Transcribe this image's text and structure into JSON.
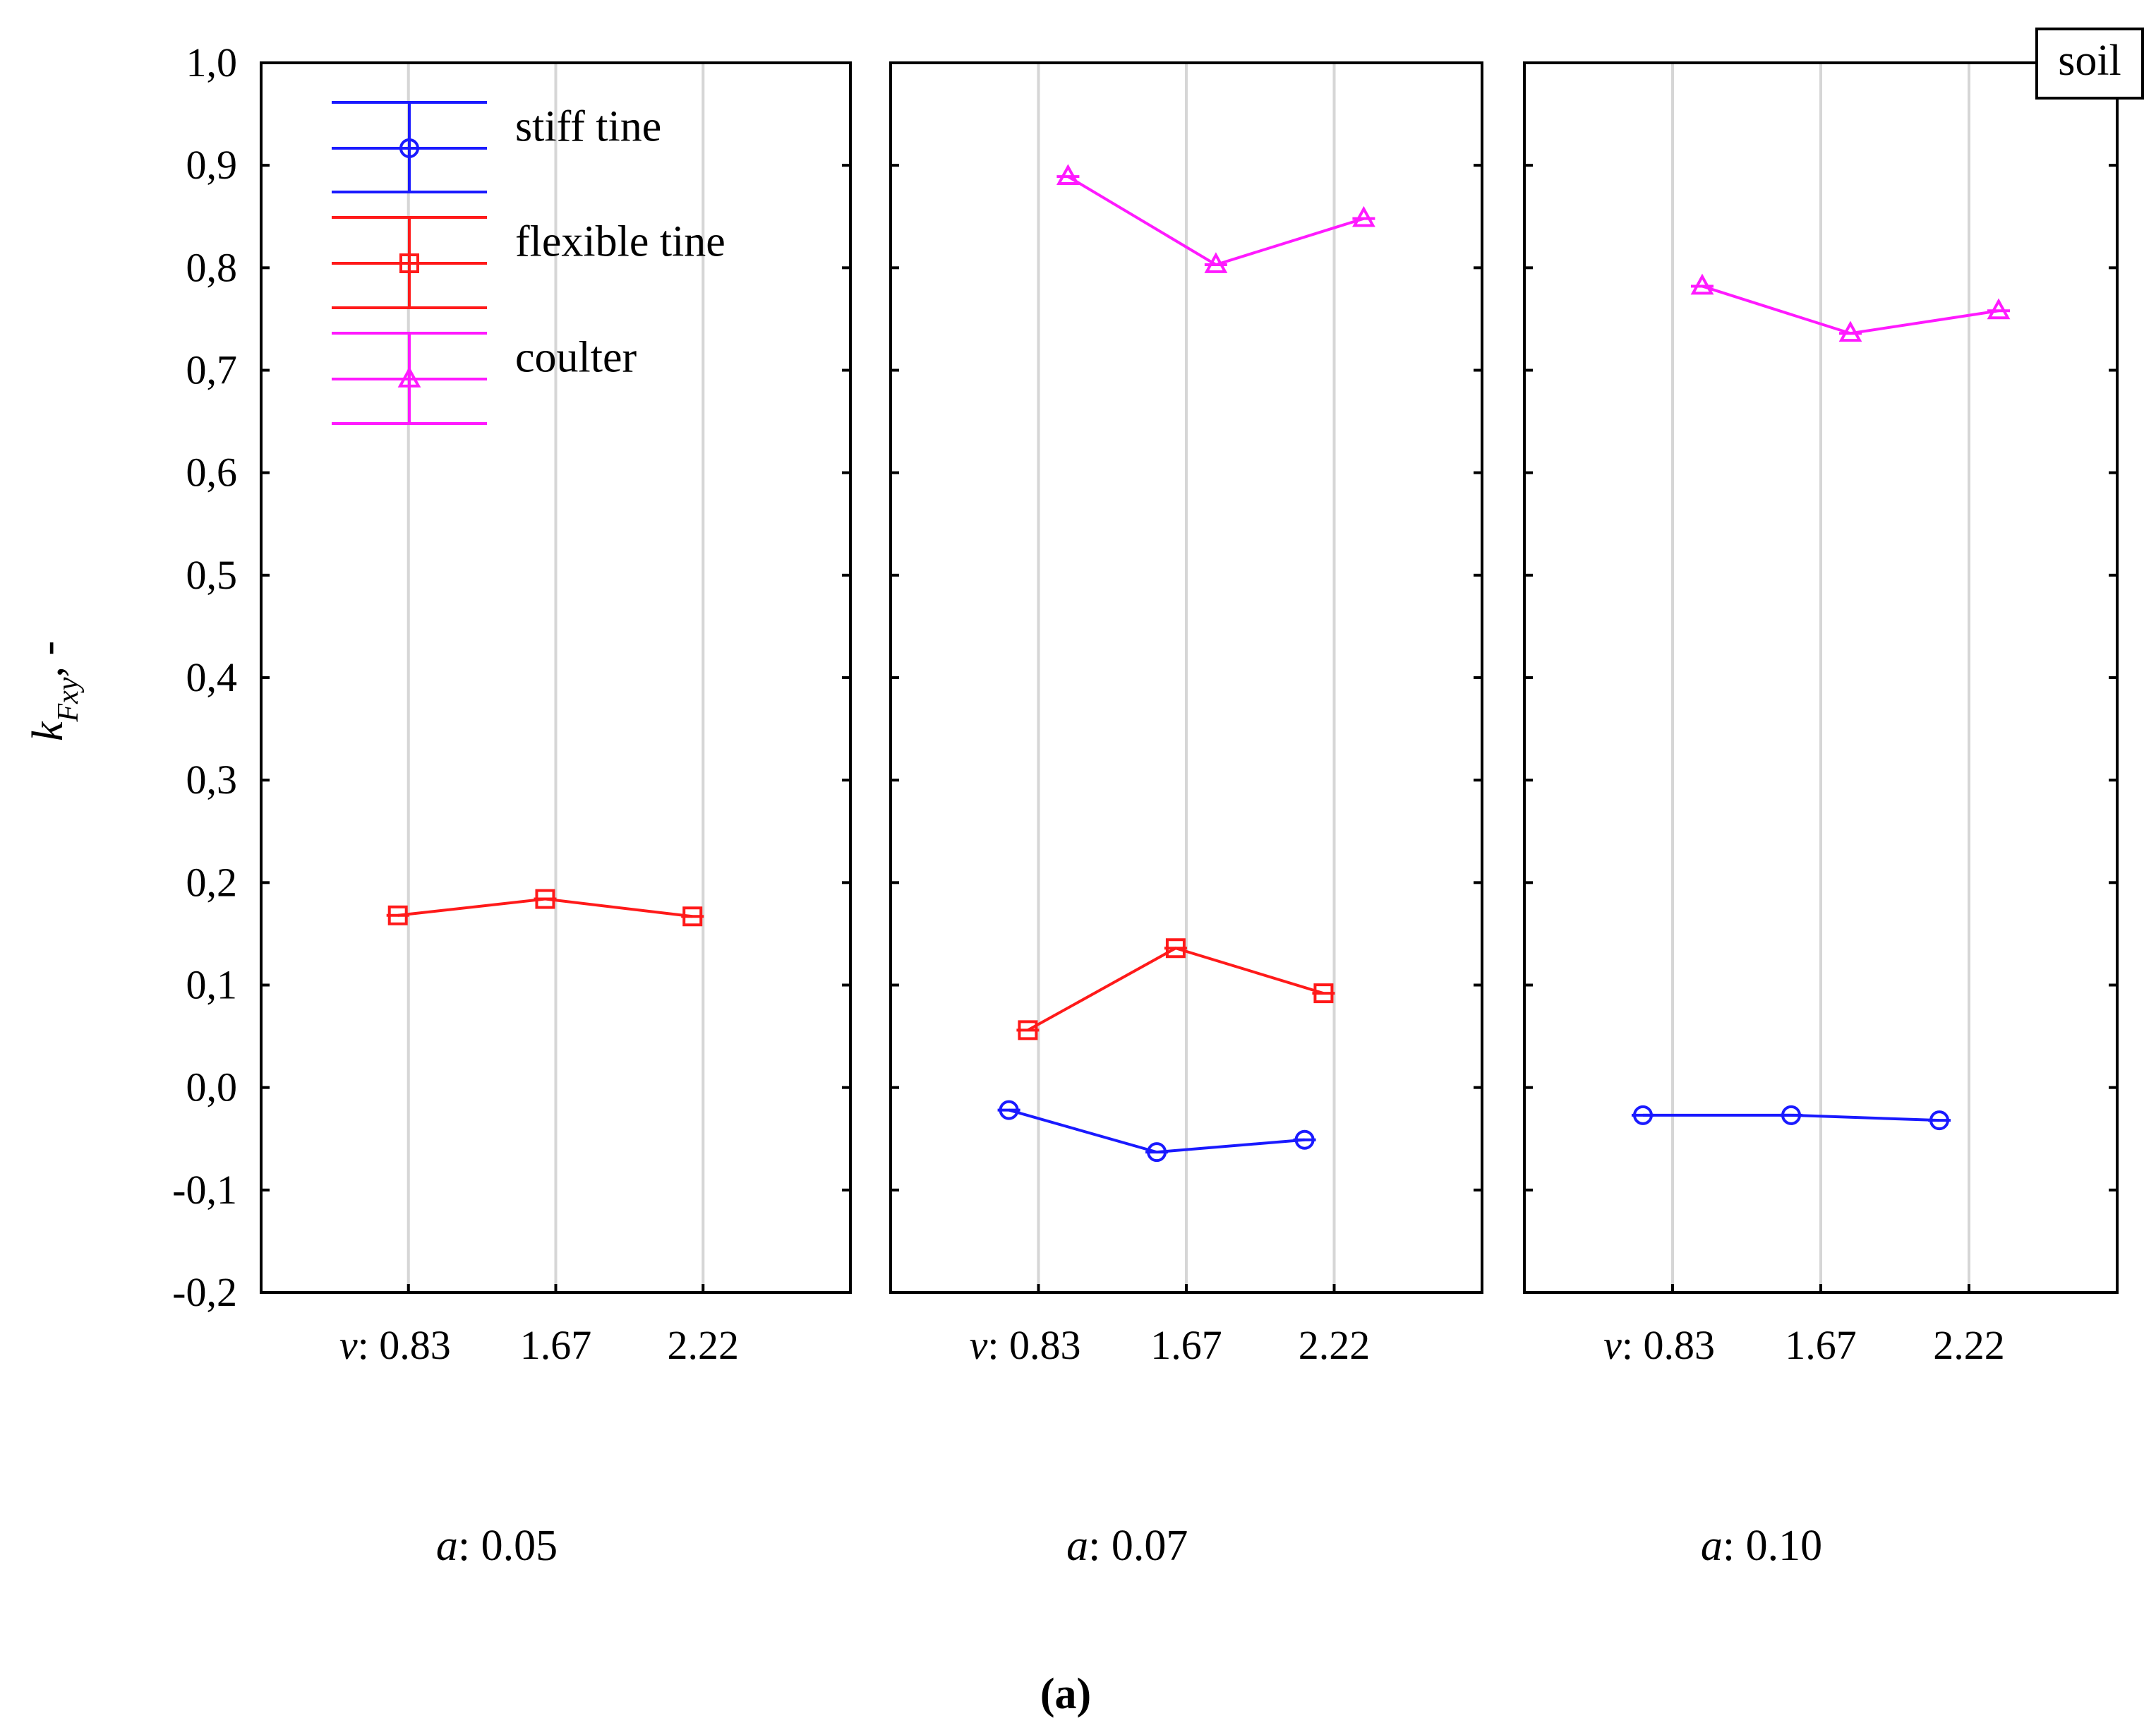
{
  "chart_data": {
    "type": "line",
    "ylabel_main": "k",
    "ylabel_sub": "Fxy",
    "ylabel_suffix": ", -",
    "ylim": [
      -0.2,
      1.0
    ],
    "yticks": [
      1.0,
      0.9,
      0.8,
      0.7,
      0.6,
      0.5,
      0.4,
      0.3,
      0.2,
      0.1,
      0.0,
      -0.1,
      -0.2
    ],
    "ytick_labels": [
      "1,0",
      "0,9",
      "0,8",
      "0,7",
      "0,6",
      "0,5",
      "0,4",
      "0,3",
      "0,2",
      "0,1",
      "0,0",
      "-0,1",
      "-0,2"
    ],
    "x_prefix": "v",
    "x_prefix_sep": ": ",
    "x_categories": [
      "0.83",
      "1.67",
      "2.22"
    ],
    "facet_prefix": "a",
    "facet_sep": ": ",
    "inset_label": "soil",
    "panel_caption": "(a)",
    "legend": [
      {
        "name": "stiff tine",
        "color": "#1a1aff",
        "marker": "circle"
      },
      {
        "name": "flexible tine",
        "color": "#ff1a1a",
        "marker": "square"
      },
      {
        "name": "coulter",
        "color": "#ff1aff",
        "marker": "triangle"
      }
    ],
    "panels": [
      {
        "facet_value": "0.05",
        "series": [
          {
            "name": "flexible tine",
            "x": [
              0.83,
              1.67,
              2.22
            ],
            "values": [
              0.168,
              0.184,
              0.167
            ]
          }
        ]
      },
      {
        "facet_value": "0.07",
        "series": [
          {
            "name": "stiff tine",
            "x": [
              0.83,
              1.67,
              2.22
            ],
            "values": [
              -0.022,
              -0.063,
              -0.051
            ]
          },
          {
            "name": "flexible tine",
            "x": [
              0.83,
              1.67,
              2.22
            ],
            "values": [
              0.056,
              0.136,
              0.092
            ]
          },
          {
            "name": "coulter",
            "x": [
              0.83,
              1.67,
              2.22
            ],
            "values": [
              0.889,
              0.803,
              0.848
            ]
          }
        ]
      },
      {
        "facet_value": "0.10",
        "series": [
          {
            "name": "stiff tine",
            "x": [
              0.83,
              1.67,
              2.22
            ],
            "values": [
              -0.027,
              -0.027,
              -0.032
            ]
          },
          {
            "name": "coulter",
            "x": [
              0.83,
              1.67,
              2.22
            ],
            "values": [
              0.782,
              0.736,
              0.758
            ]
          }
        ]
      }
    ]
  }
}
